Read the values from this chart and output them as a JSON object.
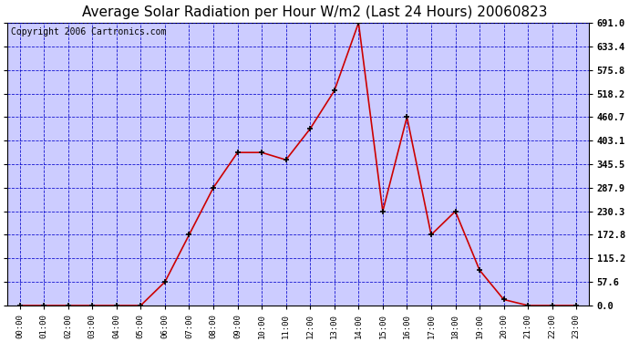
{
  "title": "Average Solar Radiation per Hour W/m2 (Last 24 Hours) 20060823",
  "copyright": "Copyright 2006 Cartronics.com",
  "hours": [
    "00:00",
    "01:00",
    "02:00",
    "03:00",
    "04:00",
    "05:00",
    "06:00",
    "07:00",
    "08:00",
    "09:00",
    "10:00",
    "11:00",
    "12:00",
    "13:00",
    "14:00",
    "15:00",
    "16:00",
    "17:00",
    "18:00",
    "19:00",
    "20:00",
    "21:00",
    "22:00",
    "23:00"
  ],
  "values": [
    0.0,
    0.0,
    0.0,
    0.0,
    0.0,
    0.0,
    57.6,
    172.8,
    287.9,
    374.0,
    374.0,
    356.0,
    432.0,
    525.0,
    691.0,
    230.3,
    460.7,
    172.8,
    230.3,
    86.4,
    14.4,
    0.0,
    0.0,
    0.0
  ],
  "line_color": "#cc0000",
  "marker_color": "#000000",
  "bg_color": "#ccccff",
  "grid_color": "#0000cc",
  "title_fontsize": 11,
  "copyright_fontsize": 7,
  "ytick_labels": [
    "0.0",
    "57.6",
    "115.2",
    "172.8",
    "230.3",
    "287.9",
    "345.5",
    "403.1",
    "460.7",
    "518.2",
    "575.8",
    "633.4",
    "691.0"
  ],
  "ytick_values": [
    0.0,
    57.6,
    115.2,
    172.8,
    230.3,
    287.9,
    345.5,
    403.1,
    460.7,
    518.2,
    575.8,
    633.4,
    691.0
  ],
  "ymax": 691.0,
  "ymin": 0.0
}
